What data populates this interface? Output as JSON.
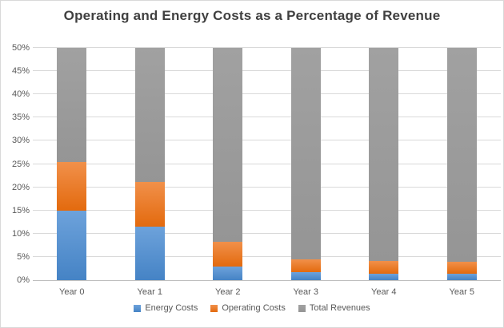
{
  "title": "Operating and Energy Costs as a Percentage of Revenue",
  "chart_data": {
    "type": "bar",
    "stacked": true,
    "title": "Operating and Energy Costs as a Percentage of Revenue",
    "categories": [
      "Year 0",
      "Year 1",
      "Year 2",
      "Year 3",
      "Year 4",
      "Year 5"
    ],
    "series": [
      {
        "name": "Energy Costs",
        "color": "#5b9bd5",
        "values": [
          14.9,
          11.6,
          3.0,
          1.7,
          1.4,
          1.3
        ]
      },
      {
        "name": "Operating Costs",
        "color": "#ed7d31",
        "values": [
          10.5,
          9.6,
          5.2,
          2.7,
          2.8,
          2.7
        ]
      },
      {
        "name": "Total Revenues",
        "color": "#a5a5a5",
        "values": [
          50,
          50,
          50,
          50,
          50,
          50
        ],
        "note": "segment fills to top of axis; actual value exceeds axis max and is clipped at 50%"
      }
    ],
    "cumulative_tops_percent": {
      "energy_costs": [
        14.9,
        11.6,
        3.0,
        1.7,
        1.4,
        1.3
      ],
      "operating_costs": [
        25.4,
        21.2,
        8.2,
        4.4,
        4.2,
        4.0
      ]
    },
    "xlabel": "",
    "ylabel": "",
    "ylim": [
      0,
      50
    ],
    "ytick_step": 5,
    "ytick_format": "percent",
    "y_tick_labels": [
      "0%",
      "5%",
      "10%",
      "15%",
      "20%",
      "25%",
      "30%",
      "35%",
      "40%",
      "45%",
      "50%"
    ],
    "grid": true,
    "legend_position": "bottom"
  },
  "colors": {
    "title_text": "#404040",
    "axis_text": "#595959",
    "gridline": "#d9d9d9",
    "axis_line": "#bfbfbf",
    "energy_gradient_top": "#6da2db",
    "energy_gradient_bottom": "#4583c5",
    "operating_gradient_top": "#f1904a",
    "operating_gradient_bottom": "#e36a0e",
    "revenue_gradient_top": "#a1a1a1",
    "revenue_gradient_bottom": "#959595"
  }
}
